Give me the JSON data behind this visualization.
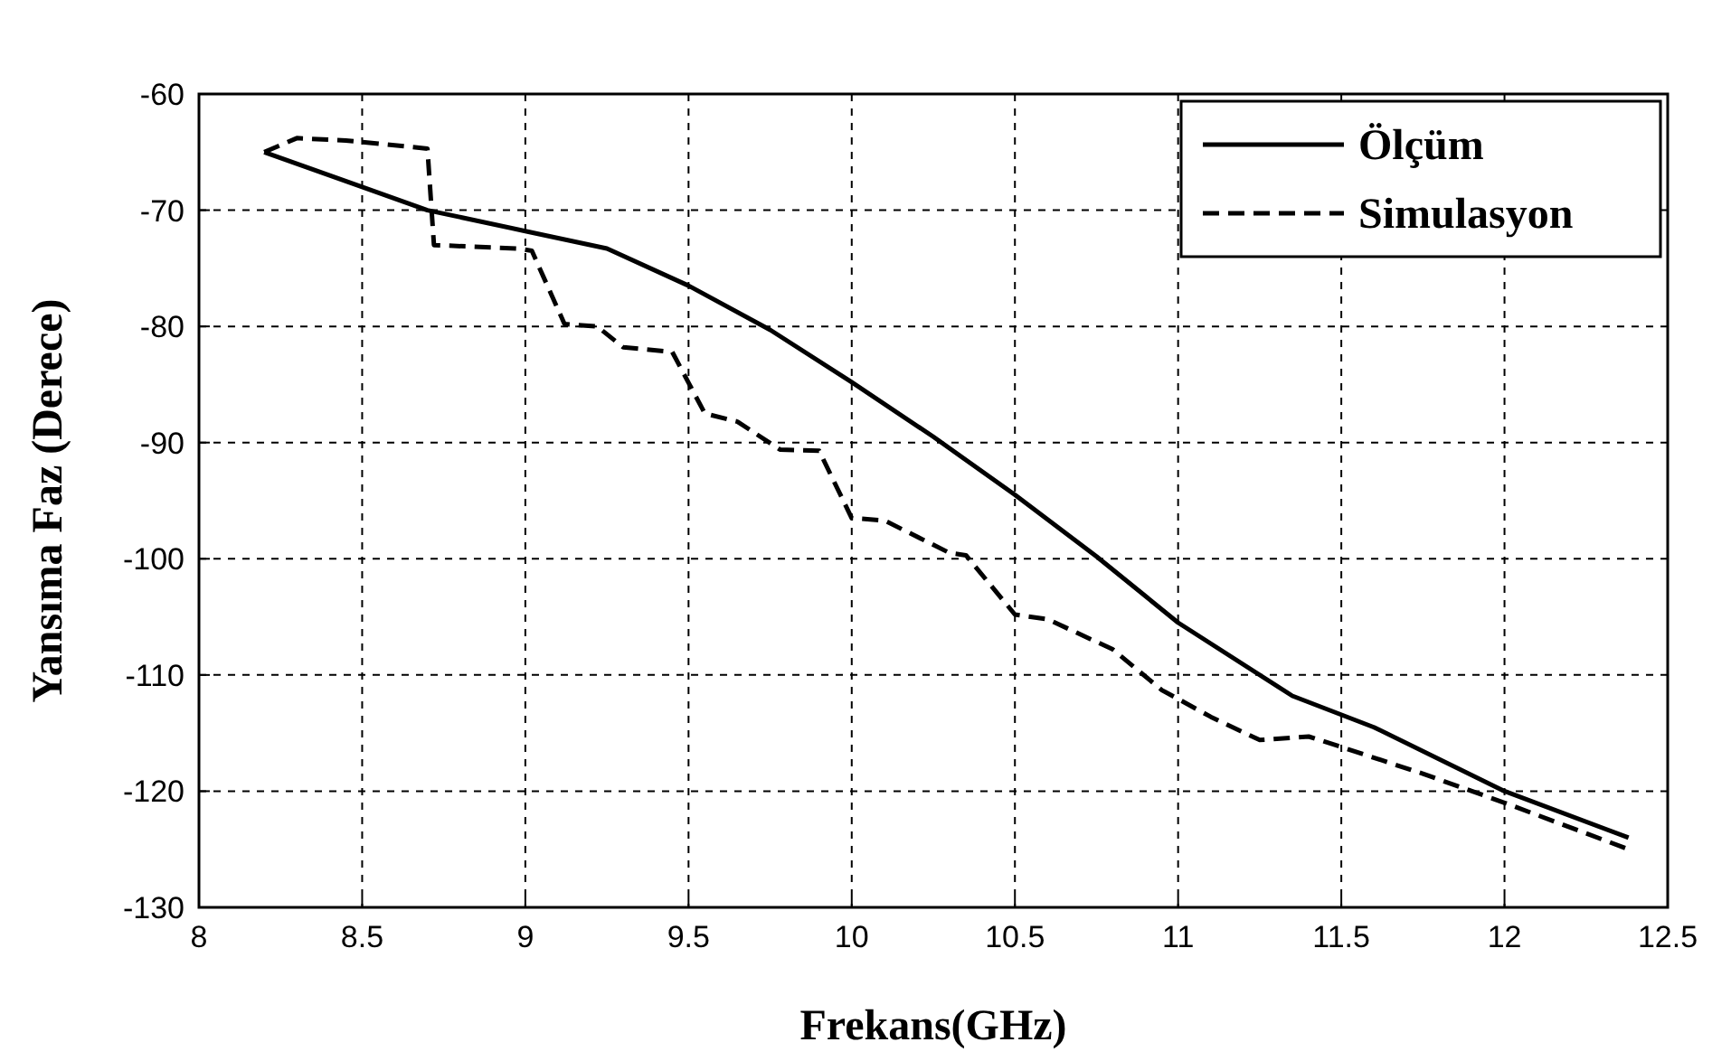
{
  "chart_data": {
    "type": "line",
    "xlabel": "Frekans(GHz)",
    "ylabel": "Yansıma Faz (Derece)",
    "xlim": [
      8,
      12.5
    ],
    "xticks": [
      8,
      8.5,
      9,
      9.5,
      10,
      10.5,
      11,
      11.5,
      12,
      12.5
    ],
    "ylim": [
      -130,
      -60
    ],
    "yticks": [
      -130,
      -120,
      -110,
      -100,
      -90,
      -80,
      -70,
      -60
    ],
    "grid": true,
    "legend": "top right",
    "series": [
      {
        "name": "Ölçüm",
        "color": "#000000",
        "line_style": "solid",
        "x": [
          8.2,
          8.5,
          8.7,
          9,
          9.25,
          9.5,
          9.75,
          10,
          10.25,
          10.5,
          10.75,
          11,
          11.35,
          11.6,
          12,
          12.38
        ],
        "values": [
          -65,
          -68,
          -70,
          -71.8,
          -73.3,
          -76.5,
          -80.3,
          -84.8,
          -89.5,
          -94.5,
          -99.8,
          -105.5,
          -111.8,
          -114.5,
          -120,
          -124
        ]
      },
      {
        "name": "Simulasyon",
        "color": "#000000",
        "line_style": "dashed",
        "x": [
          8.2,
          8.3,
          8.45,
          8.7,
          8.72,
          8.98,
          9.02,
          9.12,
          9.22,
          9.3,
          9.45,
          9.55,
          9.65,
          9.78,
          9.9,
          10,
          10.1,
          10.3,
          10.35,
          10.5,
          10.6,
          10.8,
          10.95,
          11.1,
          11.25,
          11.4,
          11.5,
          11.75,
          12,
          12.38
        ],
        "values": [
          -65,
          -63.8,
          -64,
          -64.7,
          -73,
          -73.3,
          -73.5,
          -79.8,
          -80,
          -81.8,
          -82.2,
          -87.5,
          -88.2,
          -90.6,
          -90.7,
          -96.5,
          -96.7,
          -99.5,
          -99.7,
          -104.8,
          -105.2,
          -107.8,
          -111.3,
          -113.6,
          -115.6,
          -115.3,
          -116.2,
          -118.5,
          -121,
          -125
        ]
      }
    ]
  }
}
